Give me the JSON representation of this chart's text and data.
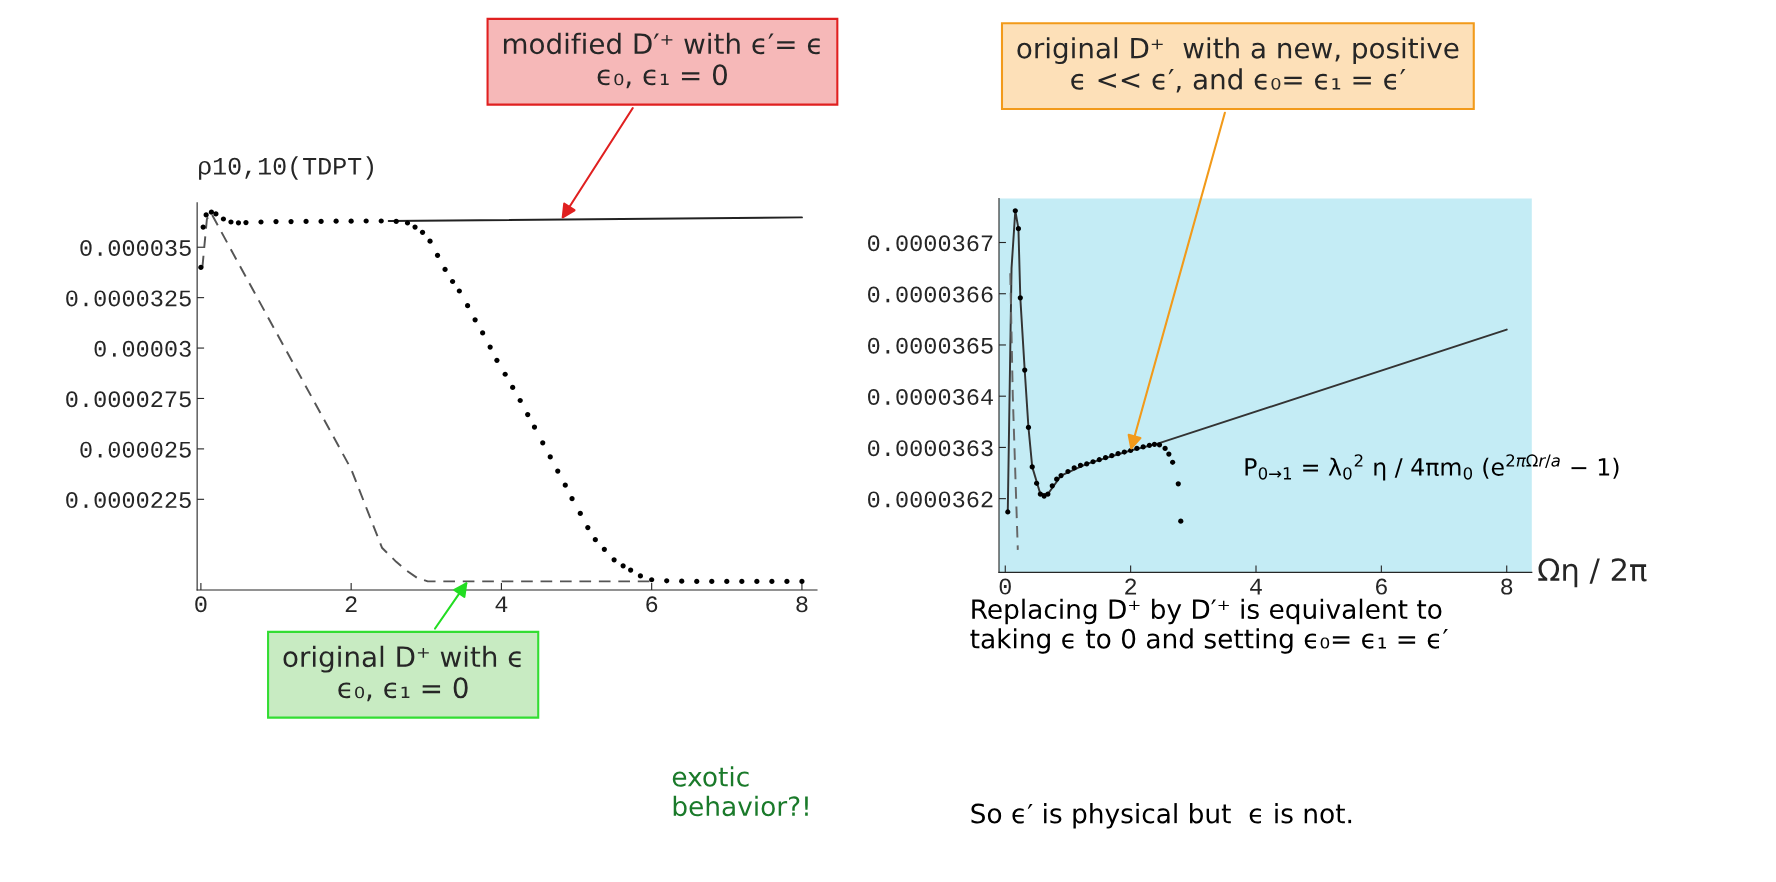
{
  "chart_data": [
    {
      "type": "line",
      "ylabel": "ρ10,10(TDPT)",
      "xlim": [
        -0.05,
        8.2
      ],
      "ylim": [
        1.8e-05,
        3.72e-05
      ],
      "xticks": [
        0,
        2,
        4,
        6,
        8
      ],
      "yticks": [
        {
          "value": 2.25e-05,
          "label": "0.0000225"
        },
        {
          "value": 2.5e-05,
          "label": "0.000025"
        },
        {
          "value": 2.75e-05,
          "label": "0.0000275"
        },
        {
          "value": 3e-05,
          "label": "0.00003"
        },
        {
          "value": 3.25e-05,
          "label": "0.0000325"
        },
        {
          "value": 3.5e-05,
          "label": "0.000035"
        }
      ],
      "grid": false,
      "series": [
        {
          "color": "#222222",
          "line_style": "solid",
          "x": [
            2.5,
            8
          ],
          "values": [
            3.63e-05,
            3.648e-05
          ]
        },
        {
          "type": "scatter",
          "color": "#000000",
          "marker": "circle",
          "x": [
            0.0,
            0.03,
            0.07,
            0.14,
            0.2,
            0.3,
            0.4,
            0.5,
            0.6,
            0.8,
            1.0,
            1.2,
            1.4,
            1.6,
            1.8,
            2.0,
            2.2,
            2.4,
            2.6,
            2.75,
            2.85,
            2.95,
            3.05,
            3.15,
            3.25,
            3.35,
            3.44,
            3.55,
            3.65,
            3.75,
            3.85,
            3.94,
            4.05,
            4.15,
            4.25,
            4.35,
            4.44,
            4.55,
            4.65,
            4.75,
            4.85,
            4.94,
            5.05,
            5.15,
            5.25,
            5.37,
            5.5,
            5.62,
            5.72,
            5.85,
            6.0,
            6.2,
            6.4,
            6.6,
            6.8,
            7.0,
            7.2,
            7.4,
            7.6,
            7.8,
            8.0
          ],
          "values": [
            3.4e-05,
            3.6e-05,
            3.66e-05,
            3.674e-05,
            3.665e-05,
            3.64e-05,
            3.625e-05,
            3.621e-05,
            3.622e-05,
            3.625e-05,
            3.627e-05,
            3.627e-05,
            3.628e-05,
            3.628e-05,
            3.629e-05,
            3.629e-05,
            3.63e-05,
            3.63e-05,
            3.628e-05,
            3.62e-05,
            3.6e-05,
            3.574e-05,
            3.53e-05,
            3.46e-05,
            3.39e-05,
            3.33e-05,
            3.283e-05,
            3.21e-05,
            3.14e-05,
            3.075e-05,
            3.005e-05,
            2.939e-05,
            2.87e-05,
            2.805e-05,
            2.74e-05,
            2.67e-05,
            2.608e-05,
            2.53e-05,
            2.46e-05,
            2.39e-05,
            2.32e-05,
            2.253e-05,
            2.18e-05,
            2.11e-05,
            2.05e-05,
            2.002e-05,
            1.95e-05,
            1.92e-05,
            1.899e-05,
            1.87e-05,
            1.851e-05,
            1.846e-05,
            1.844e-05,
            1.843e-05,
            1.843e-05,
            1.843e-05,
            1.843e-05,
            1.843e-05,
            1.843e-05,
            1.843e-05,
            1.843e-05
          ]
        },
        {
          "color": "#555555",
          "line_style": "dashed",
          "x": [
            0.02,
            0.08,
            0.135,
            0.5,
            1.0,
            1.5,
            2.0,
            2.41,
            2.6,
            2.73,
            2.88,
            3.02,
            3.5,
            4.5,
            6.0
          ],
          "values": [
            3.4e-05,
            3.64e-05,
            3.67e-05,
            3.42e-05,
            3.08e-05,
            2.74e-05,
            2.4e-05,
            2.01e-05,
            1.94e-05,
            1.899e-05,
            1.86e-05,
            1.843e-05,
            1.843e-05,
            1.843e-05,
            1.843e-05
          ]
        }
      ],
      "annotations": [
        {
          "text": "modified D′⁺ with ϵ′= ϵ\nϵ₀, ϵ₁ = 0",
          "x": 4.8,
          "y": 3.639e-05
        },
        {
          "text": "original D⁺ with ϵ\nϵ₀, ϵ₁ = 0",
          "x": 3.55,
          "y": 1.843e-05
        }
      ]
    },
    {
      "type": "line",
      "xlabel": "Ωη / 2π",
      "xlim": [
        -0.1,
        8.4
      ],
      "ylim": [
        3.6056e-05,
        3.6786e-05
      ],
      "xticks": [
        0,
        2,
        4,
        6,
        8
      ],
      "yticks": [
        {
          "value": 3.62e-05,
          "label": "0.0000362"
        },
        {
          "value": 3.63e-05,
          "label": "0.0000363"
        },
        {
          "value": 3.64e-05,
          "label": "0.0000364"
        },
        {
          "value": 3.65e-05,
          "label": "0.0000365"
        },
        {
          "value": 3.66e-05,
          "label": "0.0000366"
        },
        {
          "value": 3.67e-05,
          "label": "0.0000367"
        }
      ],
      "grid": false,
      "series": [
        {
          "color": "#333333",
          "line_style": "solid",
          "x": [
            0.04,
            0.1,
            0.16,
            0.21,
            0.24,
            0.31,
            0.37,
            0.43,
            0.56,
            0.68,
            0.89,
            1.3,
            2.0,
            2.42,
            8.0
          ],
          "values": [
            3.6174e-05,
            3.665e-05,
            3.6762e-05,
            3.6727e-05,
            3.6592e-05,
            3.6451e-05,
            3.6339e-05,
            3.6262e-05,
            3.6209e-05,
            3.6209e-05,
            3.6245e-05,
            3.6268e-05,
            3.6294e-05,
            3.6307e-05,
            3.653e-05
          ]
        },
        {
          "type": "scatter",
          "color": "#000000",
          "marker": "circle",
          "x": [
            0.04,
            0.16,
            0.21,
            0.24,
            0.31,
            0.37,
            0.43,
            0.5,
            0.56,
            0.62,
            0.68,
            0.75,
            0.82,
            0.89,
            1.0,
            1.1,
            1.2,
            1.3,
            1.4,
            1.5,
            1.6,
            1.7,
            1.8,
            1.9,
            2.0,
            2.1,
            2.2,
            2.3,
            2.38,
            2.46,
            2.55,
            2.61,
            2.67,
            2.76,
            2.8
          ],
          "values": [
            3.6174e-05,
            3.6762e-05,
            3.6727e-05,
            3.6592e-05,
            3.6451e-05,
            3.6339e-05,
            3.6262e-05,
            3.623e-05,
            3.6209e-05,
            3.6205e-05,
            3.6209e-05,
            3.6225e-05,
            3.6238e-05,
            3.6245e-05,
            3.6253e-05,
            3.626e-05,
            3.6265e-05,
            3.6268e-05,
            3.6272e-05,
            3.6276e-05,
            3.628e-05,
            3.6284e-05,
            3.6288e-05,
            3.6291e-05,
            3.6294e-05,
            3.6298e-05,
            3.6301e-05,
            3.6304e-05,
            3.6306e-05,
            3.6305e-05,
            3.6298e-05,
            3.6287e-05,
            3.6271e-05,
            3.6229e-05,
            3.6156e-05
          ]
        },
        {
          "color": "#666666",
          "line_style": "dashed",
          "x": [
            0.08,
            0.12,
            0.2
          ],
          "values": [
            3.664e-05,
            3.64e-05,
            3.61e-05
          ]
        }
      ],
      "annotations": [
        {
          "text": "original D⁺  with a new, positive\nϵ << ϵ′, and ϵ₀= ϵ₁ = ϵ′",
          "x": 2.0,
          "y": 3.6294e-05
        },
        "P$_{0→1}$ = λ$_{0}$$^{2}$ η / 4πm$_{0}$ (e$^{2πΩr/a}$ − 1)",
        "Replacing D⁺ by D′⁺ is equivalent to\ntaking ϵ to 0 and setting ϵ₀= ϵ₁ = ϵ′",
        "So ϵ′ is physical but  ϵ is not.",
        "exotic\nbehavior?!"
      ]
    }
  ]
}
